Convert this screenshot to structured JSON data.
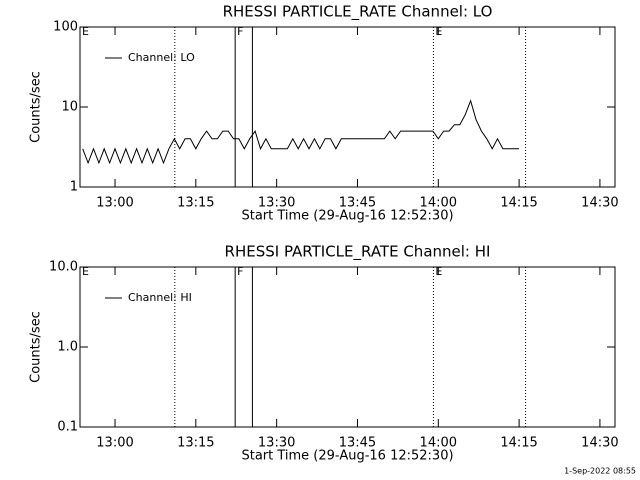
{
  "chart_data": [
    {
      "type": "line",
      "title": "RHESSI PARTICLE_RATE Channel: LO",
      "xlabel": "Start Time (29-Aug-16 12:52:30)",
      "ylabel": "Counts/sec",
      "log_y": true,
      "xlim": [
        773.5,
        872.8
      ],
      "ylim": [
        1,
        100
      ],
      "xticks": [
        {
          "value": 780,
          "label": "13:00"
        },
        {
          "value": 795,
          "label": "13:15"
        },
        {
          "value": 810,
          "label": "13:30"
        },
        {
          "value": 825,
          "label": "13:45"
        },
        {
          "value": 840,
          "label": "14:00"
        },
        {
          "value": 855,
          "label": "14:15"
        },
        {
          "value": 870,
          "label": "14:30"
        }
      ],
      "yticks": [
        1,
        10,
        100
      ],
      "vlines": [
        {
          "x": 791.1,
          "style": "dotted"
        },
        {
          "x": 802.3,
          "style": "solid"
        },
        {
          "x": 805.5,
          "style": "solid"
        },
        {
          "x": 839.1,
          "style": "dotted"
        },
        {
          "x": 856.2,
          "style": "dotted"
        }
      ],
      "flags": [
        {
          "x": 773.5,
          "label": "E"
        },
        {
          "x": 802.3,
          "label": "F"
        },
        {
          "x": 839.1,
          "label": "E"
        }
      ],
      "series": [
        {
          "name": "Channel: LO",
          "color": "#000000",
          "x": [
            774,
            775,
            776,
            777,
            778,
            779,
            780,
            781,
            782,
            783,
            784,
            785,
            786,
            787,
            788,
            789,
            790,
            791,
            792,
            793,
            794,
            795,
            796,
            797,
            798,
            799,
            800,
            801,
            802,
            803,
            804,
            805,
            806,
            807,
            808,
            809,
            810,
            811,
            812,
            813,
            814,
            815,
            816,
            817,
            818,
            819,
            820,
            821,
            822,
            823,
            824,
            825,
            826,
            827,
            828,
            829,
            830,
            831,
            832,
            833,
            834,
            835,
            836,
            837,
            838,
            839,
            840,
            841,
            842,
            843,
            844,
            845,
            846,
            847,
            848,
            849,
            850,
            851,
            852,
            853,
            854,
            855
          ],
          "values": [
            3,
            2,
            3,
            2,
            3,
            2,
            3,
            2,
            3,
            2,
            3,
            2,
            3,
            2,
            3,
            2,
            3,
            4,
            3,
            4,
            4,
            3,
            4,
            5,
            4,
            4,
            5,
            5,
            4,
            4,
            3,
            4,
            5,
            3,
            4,
            3,
            3,
            3,
            3,
            4,
            3,
            4,
            3,
            4,
            3,
            4,
            4,
            3,
            4,
            4,
            4,
            4,
            4,
            4,
            4,
            4,
            4,
            5,
            4,
            5,
            5,
            5,
            5,
            5,
            5,
            5,
            4,
            5,
            5,
            6,
            6,
            8,
            12,
            7,
            5,
            4,
            3,
            4,
            3,
            3,
            3,
            3
          ]
        }
      ]
    },
    {
      "type": "line",
      "title": "RHESSI PARTICLE_RATE Channel: HI",
      "xlabel": "Start Time (29-Aug-16 12:52:30)",
      "ylabel": "Counts/sec",
      "log_y": true,
      "xlim": [
        773.5,
        872.8
      ],
      "ylim": [
        0.1,
        10
      ],
      "xticks": [
        {
          "value": 780,
          "label": "13:00"
        },
        {
          "value": 795,
          "label": "13:15"
        },
        {
          "value": 810,
          "label": "13:30"
        },
        {
          "value": 825,
          "label": "13:45"
        },
        {
          "value": 840,
          "label": "14:00"
        },
        {
          "value": 855,
          "label": "14:15"
        },
        {
          "value": 870,
          "label": "14:30"
        }
      ],
      "yticks": [
        0.1,
        {
          "value": 1,
          "label": "1.0"
        },
        {
          "value": 10,
          "label": "10.0"
        }
      ],
      "vlines": [
        {
          "x": 791.1,
          "style": "dotted"
        },
        {
          "x": 802.3,
          "style": "solid"
        },
        {
          "x": 805.5,
          "style": "solid"
        },
        {
          "x": 839.1,
          "style": "dotted"
        },
        {
          "x": 856.2,
          "style": "dotted"
        }
      ],
      "flags": [
        {
          "x": 773.5,
          "label": "E"
        },
        {
          "x": 802.3,
          "label": "F"
        },
        {
          "x": 839.1,
          "label": "E"
        }
      ],
      "series": [
        {
          "name": "Channel: HI",
          "color": "#000000",
          "x": [],
          "values": []
        }
      ]
    }
  ],
  "footer": "1-Sep-2022 08:55"
}
